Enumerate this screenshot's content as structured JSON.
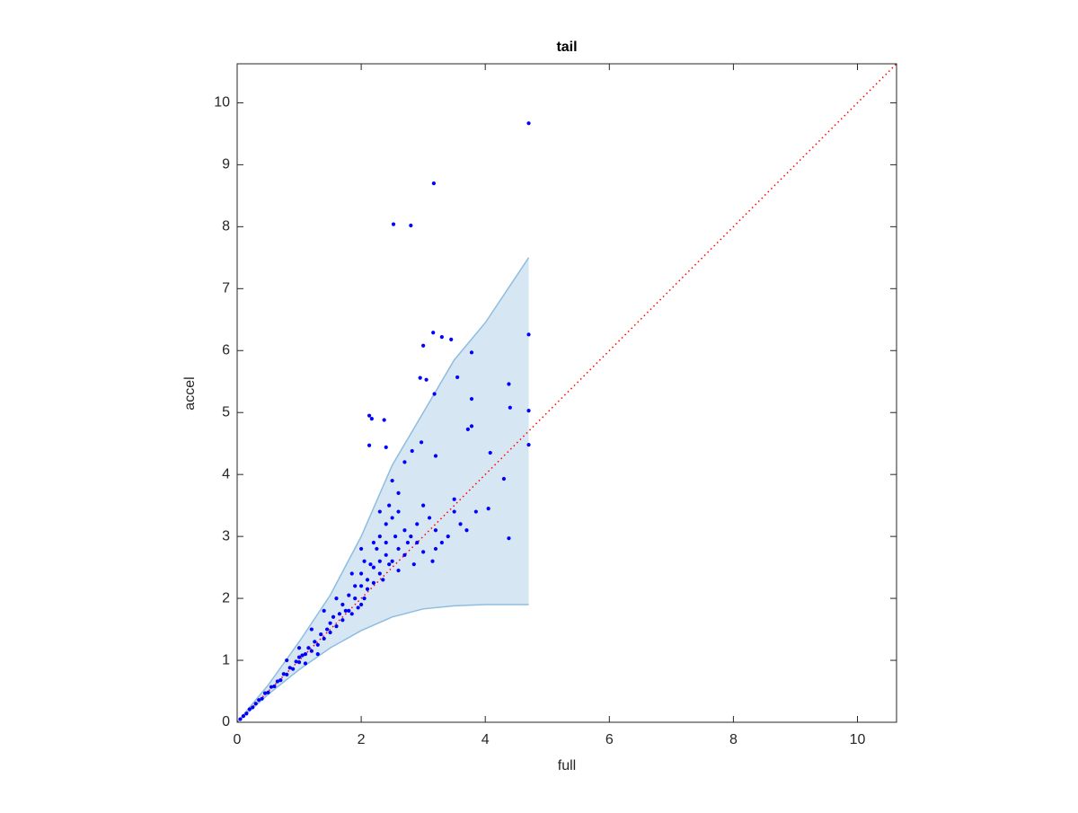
{
  "chart_data": {
    "type": "scatter",
    "title": "tail",
    "xlabel": "full",
    "ylabel": "accel",
    "xlim": [
      0,
      10.63
    ],
    "ylim": [
      0,
      10.63
    ],
    "xticks": [
      0,
      2,
      4,
      6,
      8,
      10
    ],
    "yticks": [
      0,
      1,
      2,
      3,
      4,
      5,
      6,
      7,
      8,
      9,
      10
    ],
    "band": {
      "color": "#d6e6f3",
      "edge_color": "#8dbde0",
      "x": [
        0,
        0.5,
        1,
        1.5,
        2,
        2.5,
        3,
        3.5,
        4,
        4.7
      ],
      "upper": [
        0,
        0.6,
        1.3,
        2.05,
        3.0,
        4.15,
        5.0,
        5.85,
        6.45,
        7.5
      ],
      "lower": [
        0,
        0.45,
        0.85,
        1.2,
        1.48,
        1.7,
        1.83,
        1.88,
        1.9,
        1.9
      ]
    },
    "reference_line": {
      "color": "#ff0000",
      "x": [
        0,
        10.63
      ],
      "y": [
        0,
        10.63
      ]
    },
    "points": {
      "color": "#0000ff",
      "x": [
        4.7,
        3.17,
        2.52,
        2.8,
        4.7,
        3.16,
        3.3,
        3.45,
        3.0,
        3.78,
        2.95,
        3.05,
        3.55,
        3.18,
        3.78,
        4.38,
        4.7,
        4.4,
        2.13,
        2.17,
        2.37,
        3.78,
        3.72,
        4.7,
        2.13,
        2.4,
        2.97,
        2.82,
        4.08,
        3.2,
        2.7,
        4.3,
        4.05,
        4.38,
        3.2,
        3.4,
        3.6,
        3.85,
        3.5,
        3.0,
        2.6,
        2.5,
        2.45,
        2.3,
        2.5,
        2.7,
        2.9,
        2.2,
        2.4,
        2.6,
        2.1,
        2.3,
        2.0,
        1.9,
        2.05,
        1.85,
        2.0,
        1.8,
        0.05,
        0.1,
        0.15,
        0.2,
        0.25,
        0.3,
        0.35,
        0.4,
        0.45,
        0.5,
        0.55,
        0.6,
        0.65,
        0.7,
        0.75,
        0.8,
        0.85,
        0.9,
        0.95,
        1.0,
        1.0,
        1.05,
        1.1,
        1.15,
        1.2,
        1.25,
        1.3,
        1.35,
        1.4,
        1.45,
        1.5,
        1.5,
        1.55,
        1.6,
        1.65,
        1.7,
        1.7,
        1.75,
        1.8,
        1.85,
        1.9,
        1.95,
        2.0,
        2.05,
        2.1,
        2.15,
        2.2,
        2.25,
        2.3,
        2.35,
        2.4,
        2.45,
        2.5,
        2.55,
        2.6,
        2.7,
        2.75,
        2.8,
        2.85,
        2.9,
        3.0,
        3.1,
        3.15,
        3.2,
        3.3,
        3.5,
        3.7,
        1.4,
        1.6,
        1.2,
        1.0,
        0.8,
        1.3,
        1.1,
        2.3,
        2.4,
        2.6,
        2.0,
        2.2
      ],
      "y": [
        9.67,
        8.7,
        8.04,
        8.02,
        6.26,
        6.29,
        6.22,
        6.18,
        6.08,
        5.97,
        5.56,
        5.53,
        5.57,
        5.3,
        5.22,
        5.46,
        5.03,
        5.08,
        4.95,
        4.9,
        4.88,
        4.78,
        4.73,
        4.48,
        4.47,
        4.44,
        4.52,
        4.38,
        4.35,
        4.3,
        4.2,
        3.93,
        3.45,
        2.97,
        2.8,
        3.0,
        3.2,
        3.4,
        3.6,
        3.5,
        3.7,
        3.9,
        3.5,
        3.0,
        3.3,
        3.1,
        2.9,
        2.5,
        2.7,
        2.8,
        2.3,
        2.4,
        2.2,
        2.0,
        2.6,
        2.4,
        1.9,
        1.8,
        0.05,
        0.1,
        0.14,
        0.21,
        0.24,
        0.3,
        0.36,
        0.38,
        0.47,
        0.48,
        0.57,
        0.58,
        0.66,
        0.68,
        0.78,
        0.77,
        0.88,
        0.86,
        0.98,
        0.97,
        1.05,
        1.08,
        1.1,
        1.2,
        1.15,
        1.3,
        1.25,
        1.42,
        1.35,
        1.5,
        1.45,
        1.6,
        1.7,
        1.55,
        1.75,
        1.65,
        1.9,
        1.8,
        2.05,
        1.75,
        2.2,
        1.85,
        2.4,
        2.0,
        2.15,
        2.55,
        2.25,
        2.8,
        2.6,
        2.3,
        2.9,
        2.55,
        2.6,
        3.0,
        2.45,
        2.7,
        2.9,
        3.0,
        2.55,
        3.2,
        2.75,
        3.3,
        2.6,
        3.1,
        2.9,
        3.4,
        3.1,
        1.8,
        2.0,
        1.5,
        1.2,
        1.0,
        1.1,
        0.95,
        3.4,
        3.2,
        3.4,
        2.8,
        2.9
      ]
    }
  }
}
